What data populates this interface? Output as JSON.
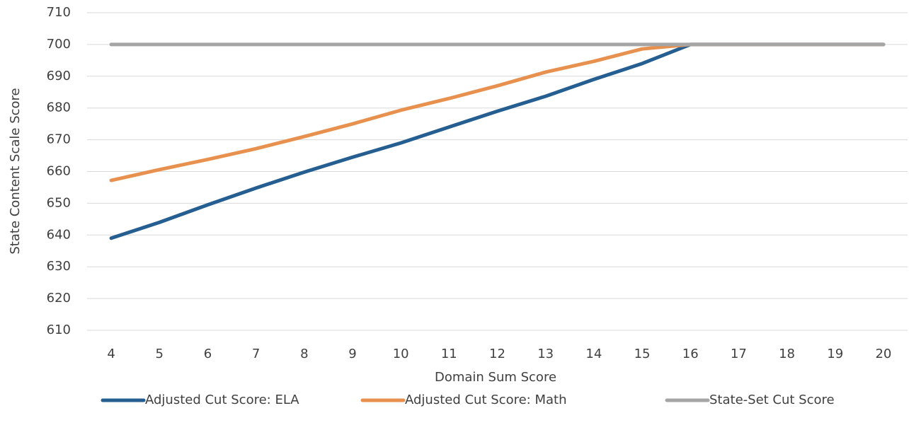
{
  "chart_data": {
    "type": "line",
    "x_label": "Domain Sum Score",
    "y_label": "State Content Scale Score",
    "categories": [
      4,
      5,
      6,
      7,
      8,
      9,
      10,
      11,
      12,
      13,
      14,
      15,
      16,
      17,
      18,
      19,
      20
    ],
    "series": [
      {
        "name": "Adjusted Cut Score: ELA",
        "color": "#255e91",
        "values": [
          639,
          644,
          649.5,
          654.8,
          659.8,
          664.5,
          669,
          674,
          679,
          683.7,
          689,
          694,
          700,
          700,
          700,
          700,
          700
        ]
      },
      {
        "name": "Adjusted Cut Score: Math",
        "color": "#e8914f",
        "values": [
          657.2,
          660.6,
          663.8,
          667.2,
          671,
          675,
          679.3,
          683,
          687,
          691.3,
          694.7,
          698.6,
          700,
          700,
          700,
          700,
          700
        ]
      },
      {
        "name": "State-Set Cut Score",
        "color": "#a5a5a5",
        "values": [
          700,
          700,
          700,
          700,
          700,
          700,
          700,
          700,
          700,
          700,
          700,
          700,
          700,
          700,
          700,
          700,
          700
        ]
      }
    ],
    "ylim": [
      610,
      710
    ],
    "yticks": [
      610,
      620,
      630,
      640,
      650,
      660,
      670,
      680,
      690,
      700,
      710
    ],
    "grid": true,
    "legend": "bottom"
  }
}
